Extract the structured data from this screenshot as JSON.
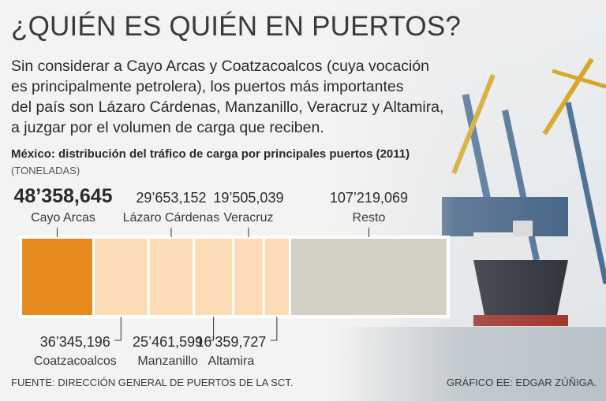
{
  "header": {
    "title": "¿QUIÉN ES QUIÉN EN PUERTOS?",
    "intro_lines": [
      "Sin considerar a Cayo Arcas y Coatzacoalcos (cuya vocación",
      "es principalmente petrolera), los puertos más importantes",
      "del país son Lázaro Cárdenas, Manzanillo, Veracruz y Altamira,",
      "a juzgar por el volumen de carga que reciben."
    ]
  },
  "chart_data": {
    "type": "bar",
    "orientation": "horizontal-stacked",
    "title": "México: distribución del tráfico de carga por principales puertos (2011)",
    "units": "(TONELADAS)",
    "categories": [
      "Cayo Arcas",
      "Coatzacoalcos",
      "Lázaro Cárdenas",
      "Manzanillo",
      "Veracruz",
      "Altamira",
      "Resto"
    ],
    "values": [
      48358645,
      36345196,
      29653152,
      25461599,
      19505039,
      16359727,
      107219069
    ],
    "value_labels": [
      "48’358,645",
      "36’345,196",
      "29’653,152",
      "25’461,599",
      "19’505,039",
      "16’359,727",
      "107’219,069"
    ],
    "label_positions": [
      "top",
      "bottom",
      "top",
      "bottom",
      "top",
      "bottom",
      "top"
    ],
    "colors": [
      "#e8891d",
      "#fbdcb6",
      "#fbdcb6",
      "#fbdcb6",
      "#fbdcb6",
      "#fbdcb6",
      "#d3d1c3"
    ]
  },
  "footer": {
    "source": "FUENTE: DIRECCIÓN GENERAL DE PUERTOS DE LA SCT.",
    "credit": "GRÁFICO EE: EDGAR ZÚÑIGA."
  }
}
